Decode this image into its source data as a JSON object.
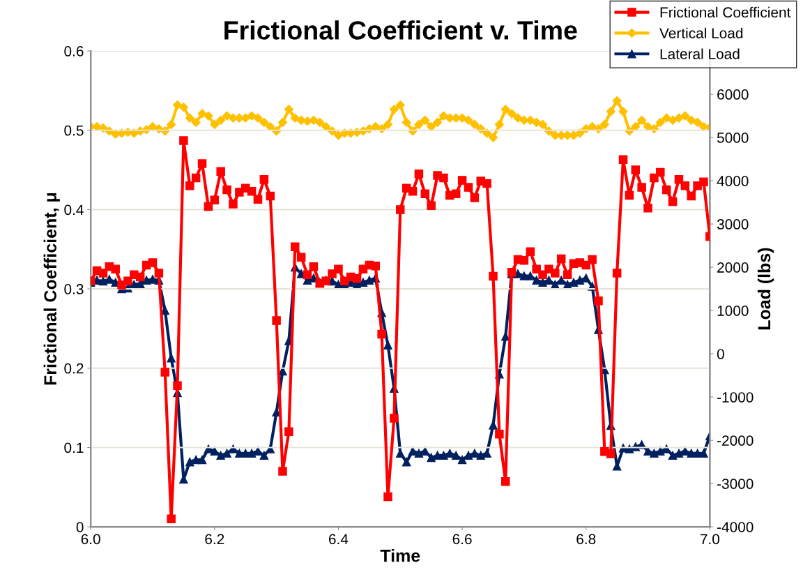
{
  "chart_data": {
    "type": "line",
    "title": "Frictional Coefficient v. Time",
    "xlabel": "Time",
    "ylabel": "Frictional Coefficient, μ",
    "y2label": "Load (lbs)",
    "x": [
      6.0,
      6.01,
      6.02,
      6.03,
      6.04,
      6.05,
      6.06,
      6.07,
      6.08,
      6.09,
      6.1,
      6.11,
      6.12,
      6.13,
      6.14,
      6.15,
      6.16,
      6.17,
      6.18,
      6.19,
      6.2,
      6.21,
      6.22,
      6.23,
      6.24,
      6.25,
      6.26,
      6.27,
      6.28,
      6.29,
      6.3,
      6.31,
      6.32,
      6.33,
      6.34,
      6.35,
      6.36,
      6.37,
      6.38,
      6.39,
      6.4,
      6.41,
      6.42,
      6.43,
      6.44,
      6.45,
      6.46,
      6.47,
      6.48,
      6.49,
      6.5,
      6.51,
      6.52,
      6.53,
      6.54,
      6.55,
      6.56,
      6.57,
      6.58,
      6.59,
      6.6,
      6.61,
      6.62,
      6.63,
      6.64,
      6.65,
      6.66,
      6.67,
      6.68,
      6.69,
      6.7,
      6.71,
      6.72,
      6.73,
      6.74,
      6.75,
      6.76,
      6.77,
      6.78,
      6.79,
      6.8,
      6.81,
      6.82,
      6.83,
      6.84,
      6.85,
      6.86,
      6.87,
      6.88,
      6.89,
      6.9,
      6.91,
      6.92,
      6.93,
      6.94,
      6.95,
      6.96,
      6.97,
      6.98,
      6.99,
      7.0
    ],
    "series": [
      {
        "name": "Frictional Coefficient",
        "color": "#ff0000",
        "marker": "square",
        "axis": "y",
        "values": [
          0.31,
          0.323,
          0.32,
          0.328,
          0.325,
          0.305,
          0.31,
          0.318,
          0.315,
          0.33,
          0.333,
          0.32,
          0.195,
          0.01,
          0.178,
          0.487,
          0.43,
          0.44,
          0.458,
          0.404,
          0.412,
          0.448,
          0.425,
          0.407,
          0.422,
          0.427,
          0.423,
          0.413,
          0.438,
          0.417,
          0.26,
          0.07,
          0.12,
          0.353,
          0.34,
          0.318,
          0.328,
          0.307,
          0.31,
          0.319,
          0.325,
          0.31,
          0.315,
          0.313,
          0.325,
          0.33,
          0.329,
          0.243,
          0.038,
          0.137,
          0.4,
          0.427,
          0.423,
          0.445,
          0.42,
          0.405,
          0.443,
          0.44,
          0.418,
          0.42,
          0.437,
          0.428,
          0.415,
          0.436,
          0.433,
          0.316,
          0.117,
          0.057,
          0.321,
          0.337,
          0.336,
          0.347,
          0.325,
          0.318,
          0.325,
          0.32,
          0.338,
          0.318,
          0.332,
          0.333,
          0.33,
          0.337,
          0.285,
          0.095,
          0.092,
          0.32,
          0.463,
          0.418,
          0.45,
          0.428,
          0.402,
          0.44,
          0.447,
          0.425,
          0.41,
          0.438,
          0.43,
          0.417,
          0.43,
          0.435,
          0.366
        ]
      },
      {
        "name": "Vertical Load",
        "color": "#ffc000",
        "marker": "diamond",
        "axis": "y2",
        "values": [
          5250,
          5250,
          5220,
          5150,
          5080,
          5100,
          5120,
          5100,
          5150,
          5180,
          5250,
          5200,
          5150,
          5300,
          5750,
          5700,
          5450,
          5350,
          5550,
          5500,
          5300,
          5400,
          5500,
          5450,
          5450,
          5450,
          5500,
          5450,
          5350,
          5250,
          5150,
          5350,
          5650,
          5450,
          5400,
          5380,
          5400,
          5350,
          5250,
          5150,
          5050,
          5100,
          5100,
          5120,
          5150,
          5200,
          5250,
          5200,
          5300,
          5650,
          5750,
          5350,
          5150,
          5300,
          5400,
          5250,
          5350,
          5500,
          5450,
          5450,
          5450,
          5400,
          5300,
          5200,
          5100,
          5000,
          5300,
          5650,
          5550,
          5450,
          5400,
          5400,
          5350,
          5300,
          5150,
          5050,
          5050,
          5050,
          5050,
          5100,
          5200,
          5250,
          5200,
          5300,
          5600,
          5850,
          5600,
          5150,
          5250,
          5400,
          5250,
          5200,
          5350,
          5450,
          5400,
          5450,
          5500,
          5400,
          5350,
          5250,
          5230
        ]
      },
      {
        "name": "Lateral Load",
        "color": "#002060",
        "marker": "triangle",
        "axis": "y2",
        "values": [
          1650,
          1700,
          1680,
          1720,
          1650,
          1500,
          1520,
          1600,
          1620,
          1700,
          1720,
          1700,
          1000,
          -100,
          -900,
          -2900,
          -2500,
          -2450,
          -2450,
          -2200,
          -2250,
          -2350,
          -2300,
          -2200,
          -2300,
          -2300,
          -2300,
          -2250,
          -2350,
          -2200,
          -1350,
          -400,
          300,
          2000,
          1850,
          1700,
          1750,
          1650,
          1700,
          1680,
          1600,
          1600,
          1650,
          1600,
          1650,
          1700,
          1750,
          950,
          200,
          -800,
          -2300,
          -2500,
          -2250,
          -2300,
          -2250,
          -2400,
          -2350,
          -2350,
          -2300,
          -2350,
          -2450,
          -2350,
          -2300,
          -2350,
          -2300,
          -1650,
          -470,
          400,
          1850,
          1850,
          1800,
          1800,
          1700,
          1650,
          1700,
          1600,
          1700,
          1600,
          1650,
          1700,
          1750,
          1560,
          560,
          -370,
          -1660,
          -2600,
          -2180,
          -2200,
          -2150,
          -2100,
          -2250,
          -2300,
          -2250,
          -2200,
          -2350,
          -2300,
          -2250,
          -2300,
          -2300,
          -2300,
          -1900
        ]
      }
    ],
    "xlim": [
      6.0,
      7.0
    ],
    "xticks": [
      {
        "value": 6.0,
        "label": "6.0"
      },
      {
        "value": 6.2,
        "label": "6.2"
      },
      {
        "value": 6.4,
        "label": "6.4"
      },
      {
        "value": 6.6,
        "label": "6.6"
      },
      {
        "value": 6.8,
        "label": "6.8"
      },
      {
        "value": 7.0,
        "label": "7.0"
      }
    ],
    "ylim": [
      0,
      0.6
    ],
    "yticks": [
      0,
      0.1,
      0.2,
      0.3,
      0.4,
      0.5,
      0.6
    ],
    "y2lim": [
      -4000,
      7000
    ],
    "y2ticks": [
      -4000,
      -3000,
      -2000,
      -1000,
      0,
      1000,
      2000,
      3000,
      4000,
      5000,
      6000
    ],
    "grid": "y",
    "legend": "top right"
  }
}
